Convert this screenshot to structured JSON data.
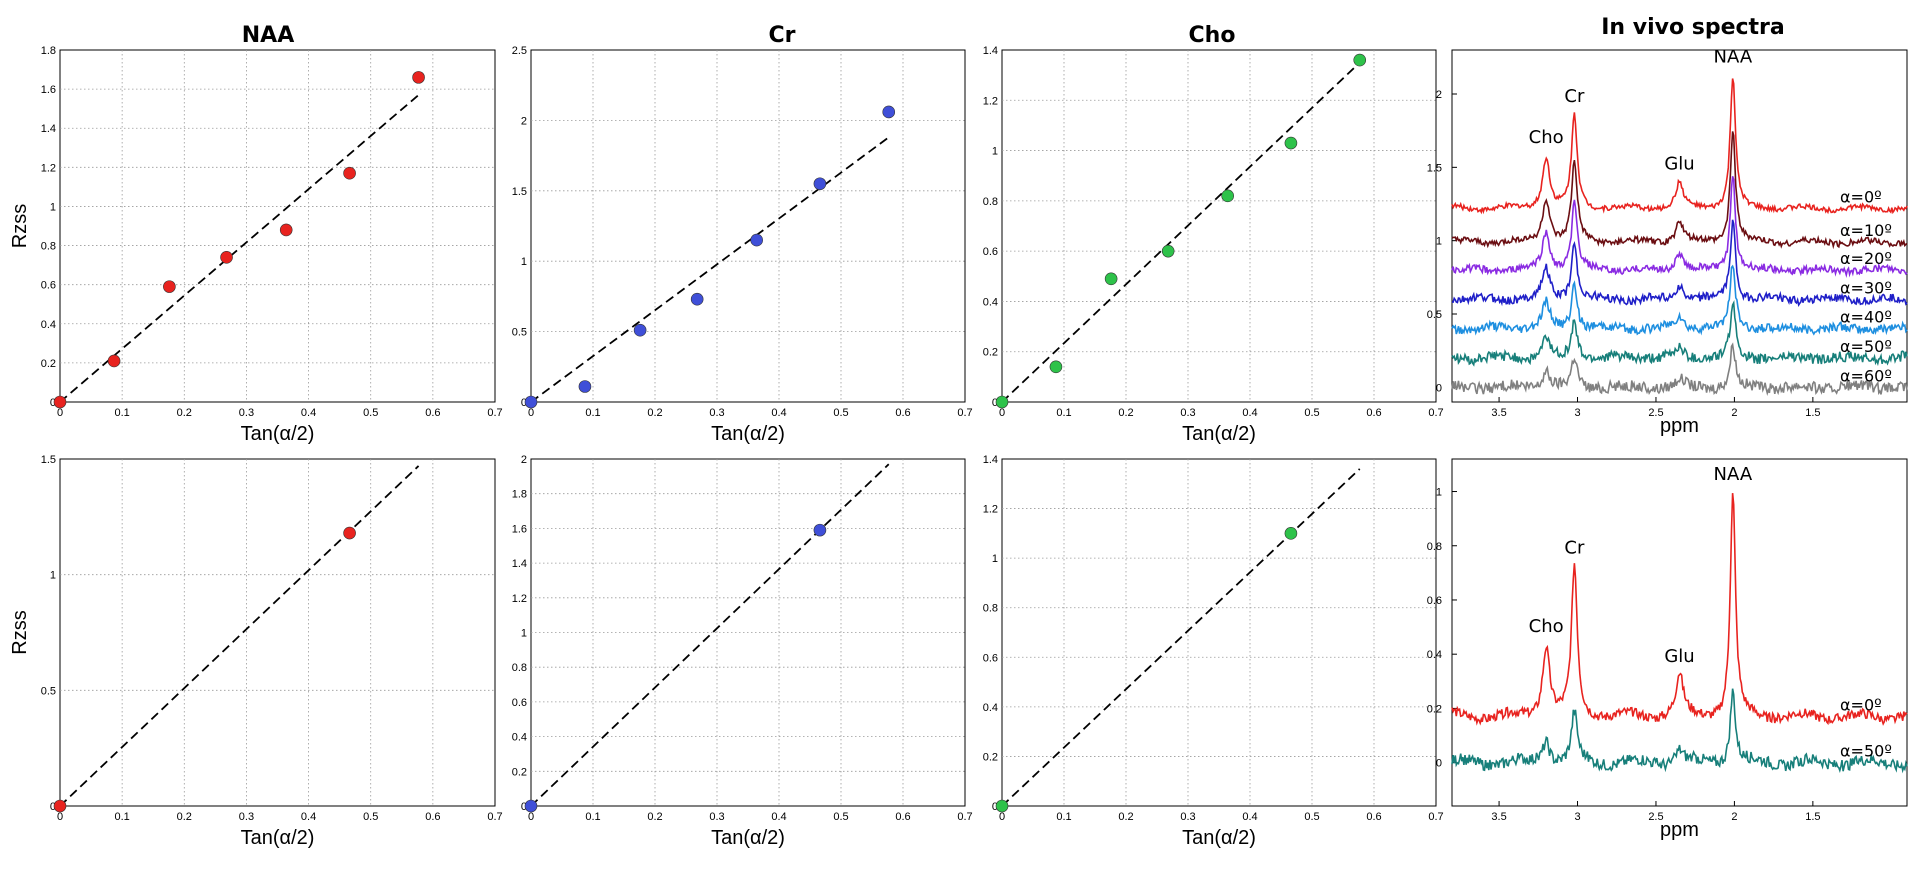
{
  "column_titles": [
    "NAA",
    "Cr",
    "Cho",
    "In vivo spectra"
  ],
  "chart_data": [
    {
      "type": "scatter",
      "metabolite": "NAA",
      "xlabel": "Tan(α/2)",
      "ylabel": "Rzss",
      "xlim": [
        0,
        0.7
      ],
      "ylim": [
        0,
        1.8
      ],
      "xticks": [
        "0",
        "0.1",
        "0.2",
        "0.3",
        "0.4",
        "0.5",
        "0.6",
        "0.7"
      ],
      "yticks": [
        "0",
        "0.2",
        "0.4",
        "0.6",
        "0.8",
        "1",
        "1.2",
        "1.4",
        "1.6",
        "1.8"
      ],
      "grid": true,
      "marker_color": "#e8231f",
      "x": [
        0,
        0.087,
        0.176,
        0.268,
        0.364,
        0.466,
        0.577
      ],
      "y": [
        0,
        0.21,
        0.59,
        0.74,
        0.88,
        1.17,
        1.66
      ],
      "fit_line": {
        "x": [
          0,
          0.577
        ],
        "y": [
          0,
          1.57
        ]
      }
    },
    {
      "type": "scatter",
      "metabolite": "Cr",
      "xlabel": "Tan(α/2)",
      "ylabel": "",
      "xlim": [
        0,
        0.7
      ],
      "ylim": [
        0,
        2.5
      ],
      "xticks": [
        "0",
        "0.1",
        "0.2",
        "0.3",
        "0.4",
        "0.5",
        "0.6",
        "0.7"
      ],
      "yticks": [
        "0",
        "0.5",
        "1",
        "1.5",
        "2",
        "2.5"
      ],
      "grid": true,
      "marker_color": "#3f4fd8",
      "x": [
        0,
        0.087,
        0.176,
        0.268,
        0.364,
        0.466,
        0.577
      ],
      "y": [
        0,
        0.11,
        0.51,
        0.73,
        1.15,
        1.55,
        2.06
      ],
      "fit_line": {
        "x": [
          0,
          0.577
        ],
        "y": [
          0,
          1.88
        ]
      }
    },
    {
      "type": "scatter",
      "metabolite": "Cho",
      "xlabel": "Tan(α/2)",
      "ylabel": "",
      "xlim": [
        0,
        0.7
      ],
      "ylim": [
        0,
        1.4
      ],
      "xticks": [
        "0",
        "0.1",
        "0.2",
        "0.3",
        "0.4",
        "0.5",
        "0.6",
        "0.7"
      ],
      "yticks": [
        "0",
        "0.2",
        "0.4",
        "0.6",
        "0.8",
        "1",
        "1.2",
        "1.4"
      ],
      "grid": true,
      "marker_color": "#2ec24a",
      "x": [
        0,
        0.087,
        0.176,
        0.268,
        0.364,
        0.466,
        0.577
      ],
      "y": [
        0,
        0.14,
        0.49,
        0.6,
        0.82,
        1.03,
        1.36
      ],
      "fit_line": {
        "x": [
          0,
          0.577
        ],
        "y": [
          0,
          1.35
        ]
      }
    },
    {
      "type": "line",
      "xlabel": "ppm",
      "ylabel": "",
      "xlim": [
        3.8,
        0.9
      ],
      "ylim": [
        -0.1,
        2.3
      ],
      "x_reversed": true,
      "xticks": [
        "3.5",
        "3",
        "2.5",
        "2",
        "1.5"
      ],
      "xtick_values": [
        3.5,
        3,
        2.5,
        2,
        1.5
      ],
      "yticks": [
        "0",
        "0.5",
        "1",
        "1.5",
        "2"
      ],
      "ytick_values": [
        0,
        0.5,
        1,
        1.5,
        2
      ],
      "grid": false,
      "peaks": [
        {
          "label": "Cho",
          "ppm": 3.2
        },
        {
          "label": "Cr",
          "ppm": 3.02
        },
        {
          "label": "Glu",
          "ppm": 2.35
        },
        {
          "label": "NAA",
          "ppm": 2.01
        }
      ],
      "series": [
        {
          "name": "α=0º",
          "baseline": 1.22,
          "scale": 1.0,
          "color": "#e8231f"
        },
        {
          "name": "α=10º",
          "baseline": 0.99,
          "scale": 0.85,
          "color": "#6b0e12"
        },
        {
          "name": "α=20º",
          "baseline": 0.8,
          "scale": 0.72,
          "color": "#8a2be2"
        },
        {
          "name": "α=30º",
          "baseline": 0.6,
          "scale": 0.6,
          "color": "#1f1fc8"
        },
        {
          "name": "α=40º",
          "baseline": 0.4,
          "scale": 0.5,
          "color": "#1e8fe0"
        },
        {
          "name": "α=50º",
          "baseline": 0.2,
          "scale": 0.4,
          "color": "#177f7a"
        },
        {
          "name": "α=60º",
          "baseline": 0.0,
          "scale": 0.32,
          "color": "#808080"
        }
      ],
      "peak_heights": [
        0.35,
        0.63,
        0.17,
        0.9
      ]
    },
    {
      "type": "scatter",
      "metabolite": "NAA",
      "xlabel": "Tan(α/2)",
      "ylabel": "Rzss",
      "xlim": [
        0,
        0.7
      ],
      "ylim": [
        0,
        1.5
      ],
      "xticks": [
        "0",
        "0.1",
        "0.2",
        "0.3",
        "0.4",
        "0.5",
        "0.6",
        "0.7"
      ],
      "yticks": [
        "0",
        "0.5",
        "1",
        "1.5"
      ],
      "grid": true,
      "marker_color": "#e8231f",
      "x": [
        0,
        0.466
      ],
      "y": [
        0,
        1.18
      ],
      "fit_line": {
        "x": [
          0,
          0.577
        ],
        "y": [
          0,
          1.47
        ]
      }
    },
    {
      "type": "scatter",
      "metabolite": "Cr",
      "xlabel": "Tan(α/2)",
      "ylabel": "",
      "xlim": [
        0,
        0.7
      ],
      "ylim": [
        0,
        2
      ],
      "xticks": [
        "0",
        "0.1",
        "0.2",
        "0.3",
        "0.4",
        "0.5",
        "0.6",
        "0.7"
      ],
      "yticks": [
        "0",
        "0.2",
        "0.4",
        "0.6",
        "0.8",
        "1",
        "1.2",
        "1.4",
        "1.6",
        "1.8",
        "2"
      ],
      "grid": true,
      "marker_color": "#3f4fd8",
      "x": [
        0,
        0.466
      ],
      "y": [
        0,
        1.59
      ],
      "fit_line": {
        "x": [
          0,
          0.577
        ],
        "y": [
          0,
          1.97
        ]
      }
    },
    {
      "type": "scatter",
      "metabolite": "Cho",
      "xlabel": "Tan(α/2)",
      "ylabel": "",
      "xlim": [
        0,
        0.7
      ],
      "ylim": [
        0,
        1.4
      ],
      "xticks": [
        "0",
        "0.1",
        "0.2",
        "0.3",
        "0.4",
        "0.5",
        "0.6",
        "0.7"
      ],
      "yticks": [
        "0",
        "0.2",
        "0.4",
        "0.6",
        "0.8",
        "1",
        "1.2",
        "1.4"
      ],
      "grid": true,
      "marker_color": "#2ec24a",
      "x": [
        0,
        0.466
      ],
      "y": [
        0,
        1.1
      ],
      "fit_line": {
        "x": [
          0,
          0.577
        ],
        "y": [
          0,
          1.36
        ]
      }
    },
    {
      "type": "line",
      "xlabel": "ppm",
      "ylabel": "",
      "xlim": [
        3.8,
        0.9
      ],
      "ylim": [
        -0.16,
        1.12
      ],
      "x_reversed": true,
      "xticks": [
        "3.5",
        "3",
        "2.5",
        "2",
        "1.5"
      ],
      "xtick_values": [
        3.5,
        3,
        2.5,
        2,
        1.5
      ],
      "yticks": [
        "0",
        "0.2",
        "0.4",
        "0.6",
        "0.8",
        "1"
      ],
      "ytick_values": [
        0,
        0.2,
        0.4,
        0.6,
        0.8,
        1
      ],
      "grid": false,
      "peaks": [
        {
          "label": "Cho",
          "ppm": 3.2
        },
        {
          "label": "Cr",
          "ppm": 3.02
        },
        {
          "label": "Glu",
          "ppm": 2.35
        },
        {
          "label": "NAA",
          "ppm": 2.01
        }
      ],
      "series": [
        {
          "name": "α=0º",
          "baseline": 0.17,
          "scale": 1.0,
          "color": "#e8231f"
        },
        {
          "name": "α=50º",
          "baseline": 0.0,
          "scale": 0.33,
          "color": "#177f7a"
        }
      ],
      "peak_heights": [
        0.26,
        0.55,
        0.15,
        0.82
      ]
    }
  ]
}
